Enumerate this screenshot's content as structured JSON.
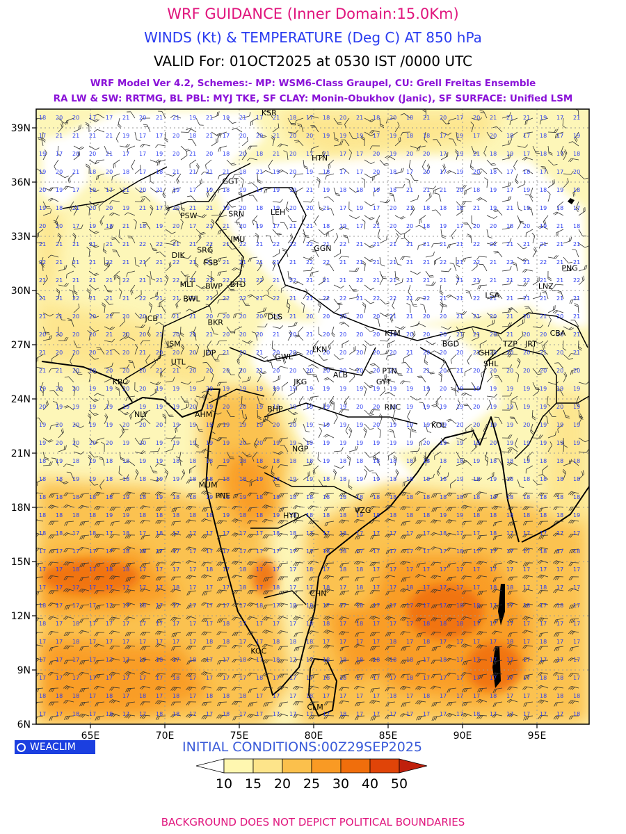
{
  "titles": {
    "line1": "WRF GUIDANCE (Inner Domain:15.0Km)",
    "line2": "WINDS (Kt) & TEMPERATURE (Deg C) AT 850 hPa",
    "line3": "VALID For: 01OCT2025 at 0530 IST /0000 UTC",
    "line4": "WRF Model Ver 4.2, Schemes:- MP: WSM6-Class Graupel, CU: Grell Freitas Ensemble",
    "line5": "RA LW & SW: RRTMG, BL PBL: MYJ TKE, SF CLAY: Monin-Obukhov (Janic), SF SURFACE: Unified LSM"
  },
  "map": {
    "lat_ticks": [
      "39N",
      "36N",
      "33N",
      "30N",
      "27N",
      "24N",
      "21N",
      "18N",
      "15N",
      "12N",
      "9N",
      "6N"
    ],
    "lon_ticks": [
      "65E",
      "70E",
      "75E",
      "80E",
      "85E",
      "90E",
      "95E"
    ],
    "lat_range": [
      6,
      40
    ],
    "lon_range": [
      62,
      99
    ],
    "grid": "dotted",
    "stations": [
      {
        "id": "KSR",
        "lon": 77.0,
        "lat": 39.7
      },
      {
        "id": "HTN",
        "lon": 80.4,
        "lat": 37.2
      },
      {
        "id": "GGT",
        "lon": 74.4,
        "lat": 35.9
      },
      {
        "id": "PSW",
        "lon": 71.6,
        "lat": 34.0
      },
      {
        "id": "SRN",
        "lon": 74.8,
        "lat": 34.1
      },
      {
        "id": "LEH",
        "lon": 77.6,
        "lat": 34.2
      },
      {
        "id": "JMU",
        "lon": 74.9,
        "lat": 32.7
      },
      {
        "id": "GGN",
        "lon": 80.6,
        "lat": 32.2
      },
      {
        "id": "DIK",
        "lon": 70.9,
        "lat": 31.8
      },
      {
        "id": "SRG",
        "lon": 72.7,
        "lat": 32.1
      },
      {
        "id": "FSB",
        "lon": 73.1,
        "lat": 31.4
      },
      {
        "id": "PNG",
        "lon": 97.2,
        "lat": 31.1
      },
      {
        "id": "MLT",
        "lon": 71.5,
        "lat": 30.2
      },
      {
        "id": "BWP",
        "lon": 73.3,
        "lat": 30.1
      },
      {
        "id": "BTD",
        "lon": 74.9,
        "lat": 30.2
      },
      {
        "id": "LNZ",
        "lon": 95.6,
        "lat": 30.1
      },
      {
        "id": "LSA",
        "lon": 92.0,
        "lat": 29.6
      },
      {
        "id": "BWL",
        "lon": 71.8,
        "lat": 29.4
      },
      {
        "id": "JCB",
        "lon": 69.1,
        "lat": 28.3
      },
      {
        "id": "DLS",
        "lon": 77.4,
        "lat": 28.4
      },
      {
        "id": "BKR",
        "lon": 73.4,
        "lat": 28.1
      },
      {
        "id": "KTM",
        "lon": 85.3,
        "lat": 27.5
      },
      {
        "id": "CBA",
        "lon": 96.4,
        "lat": 27.5
      },
      {
        "id": "JSM",
        "lon": 70.6,
        "lat": 26.9
      },
      {
        "id": "BGD",
        "lon": 89.2,
        "lat": 26.9
      },
      {
        "id": "TZP",
        "lon": 93.2,
        "lat": 26.9
      },
      {
        "id": "JRT",
        "lon": 94.6,
        "lat": 26.9
      },
      {
        "id": "LKN",
        "lon": 80.4,
        "lat": 26.6
      },
      {
        "id": "JDP",
        "lon": 73.0,
        "lat": 26.4
      },
      {
        "id": "GHT",
        "lon": 91.6,
        "lat": 26.4
      },
      {
        "id": "GWL",
        "lon": 78.0,
        "lat": 26.2
      },
      {
        "id": "UTL",
        "lon": 70.9,
        "lat": 25.9
      },
      {
        "id": "SHL",
        "lon": 91.9,
        "lat": 25.8
      },
      {
        "id": "PTN",
        "lon": 85.1,
        "lat": 25.4
      },
      {
        "id": "ALB",
        "lon": 81.8,
        "lat": 25.2
      },
      {
        "id": "GYT",
        "lon": 84.7,
        "lat": 24.8
      },
      {
        "id": "JKG",
        "lon": 79.1,
        "lat": 24.8
      },
      {
        "id": "KRC",
        "lon": 67.0,
        "lat": 24.8
      },
      {
        "id": "RNC",
        "lon": 85.3,
        "lat": 23.4
      },
      {
        "id": "BHP",
        "lon": 77.4,
        "lat": 23.3
      },
      {
        "id": "NLY",
        "lon": 68.4,
        "lat": 23.0
      },
      {
        "id": "AHM",
        "lon": 72.6,
        "lat": 23.0
      },
      {
        "id": "KOL",
        "lon": 88.4,
        "lat": 22.4
      },
      {
        "id": "NGP",
        "lon": 79.1,
        "lat": 21.1
      },
      {
        "id": "MUM",
        "lon": 72.9,
        "lat": 19.1
      },
      {
        "id": "PNE",
        "lon": 73.9,
        "lat": 18.5
      },
      {
        "id": "HYD",
        "lon": 78.5,
        "lat": 17.4
      },
      {
        "id": "VZG",
        "lon": 83.3,
        "lat": 17.7
      },
      {
        "id": "CHN",
        "lon": 80.3,
        "lat": 13.1
      },
      {
        "id": "KOC",
        "lon": 76.3,
        "lat": 9.9
      },
      {
        "id": "CLM",
        "lon": 80.1,
        "lat": 6.8
      }
    ]
  },
  "legend": {
    "initial_conditions": "INITIAL CONDITIONS:00Z29SEP2025",
    "levels": [
      "10",
      "15",
      "20",
      "25",
      "30",
      "40",
      "50"
    ],
    "colors": [
      "#ffffff",
      "#fff7b0",
      "#fde48a",
      "#fbc04c",
      "#f99a24",
      "#f06e0c",
      "#e04408",
      "#c0200c"
    ]
  },
  "logo": {
    "text": "WEACLIM",
    "icon": "copyright-circle-icon"
  },
  "footer": "BACKGROUND DOES NOT DEPICT POLITICAL BOUNDARIES"
}
